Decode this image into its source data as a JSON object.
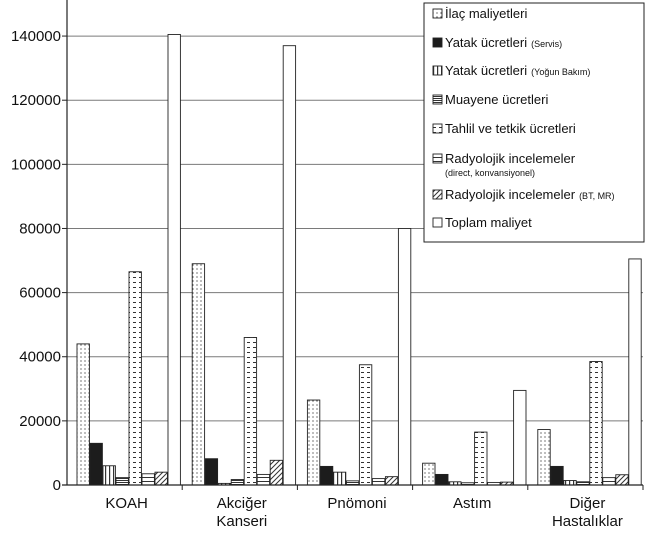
{
  "chart_data": {
    "type": "bar",
    "title": "",
    "xlabel": "",
    "ylabel": "",
    "ylim": [
      0,
      150000
    ],
    "yticks": [
      0,
      20000,
      40000,
      60000,
      80000,
      100000,
      120000,
      140000
    ],
    "ytick_labels": [
      "0",
      "20000",
      "40000",
      "60000",
      "80000",
      "100000",
      "120000",
      "140000"
    ],
    "grid": "horizontal",
    "legend_position": "top-right",
    "categories": [
      {
        "line1": "KOAH",
        "line2": ""
      },
      {
        "line1": "Akciğer",
        "line2": "Kanseri"
      },
      {
        "line1": "Pnömoni",
        "line2": ""
      },
      {
        "line1": "Astım",
        "line2": ""
      },
      {
        "line1": "Diğer",
        "line2": "Hastalıklar"
      }
    ],
    "series": [
      {
        "name": "İlaç maliyetleri",
        "name_sub": "",
        "pattern": "dots",
        "values": [
          44000,
          69000,
          26500,
          6800,
          17300
        ]
      },
      {
        "name": "Yatak ücretleri",
        "name_sub": "(Servis)",
        "pattern": "solid",
        "values": [
          13000,
          8200,
          5800,
          3300,
          5800
        ]
      },
      {
        "name": "Yatak ücretleri",
        "name_sub": "(Yoğun Bakım)",
        "pattern": "vlines",
        "values": [
          6000,
          500,
          4000,
          1000,
          1400
        ]
      },
      {
        "name": "Muayene ücretleri",
        "name_sub": "",
        "pattern": "hlines-dense",
        "values": [
          2300,
          1700,
          1300,
          700,
          1000
        ]
      },
      {
        "name": "Tahlil ve tetkik ücretleri",
        "name_sub": "",
        "pattern": "dashes",
        "values": [
          66500,
          46000,
          37500,
          16500,
          38500
        ]
      },
      {
        "name": "Radyolojik incelemeler",
        "name_sub": "(direct, konvansiyonel)",
        "pattern": "hlines",
        "values": [
          3500,
          3300,
          2000,
          800,
          2300
        ]
      },
      {
        "name": "Radyolojik incelemeler",
        "name_sub": "(BT, MR)",
        "pattern": "diag",
        "values": [
          4000,
          7700,
          2600,
          900,
          3200
        ]
      },
      {
        "name": "Toplam maliyet",
        "name_sub": "",
        "pattern": "empty",
        "values": [
          140500,
          137000,
          80000,
          29500,
          70500
        ]
      }
    ]
  }
}
